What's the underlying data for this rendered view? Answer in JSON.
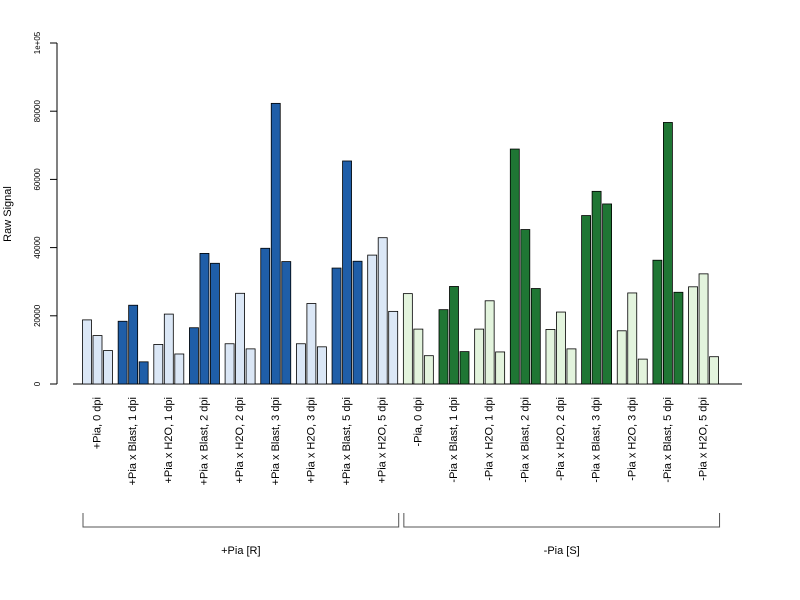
{
  "chart_data": {
    "type": "bar",
    "ylabel": "Raw Signal",
    "ylim": [
      0,
      100000
    ],
    "yticks": [
      0,
      20000,
      40000,
      60000,
      80000,
      100000
    ],
    "ytick_labels": [
      "0",
      "20000",
      "40000",
      "60000",
      "80000",
      "1e+05"
    ],
    "grid": false,
    "legend": "none",
    "bars_per_group": 3,
    "categories": [
      "+Pia, 0 dpi",
      "+Pia x Blast, 1 dpi",
      "+Pia x H2O, 1 dpi",
      "+Pia x Blast, 2 dpi",
      "+Pia x H2O, 2 dpi",
      "+Pia x Blast, 3 dpi",
      "+Pia x H2O, 3 dpi",
      "+Pia x Blast, 5 dpi",
      "+Pia x H2O, 5 dpi",
      "-Pia, 0 dpi",
      "-Pia x Blast, 1 dpi",
      "-Pia x H2O, 1 dpi",
      "-Pia x Blast, 2 dpi",
      "-Pia x H2O, 2 dpi",
      "-Pia x Blast, 3 dpi",
      "-Pia x H2O, 3 dpi",
      "-Pia x Blast, 5 dpi",
      "-Pia x H2O, 5 dpi"
    ],
    "values": [
      [
        18800,
        14200,
        9800
      ],
      [
        18400,
        23100,
        6500
      ],
      [
        11600,
        20500,
        8800
      ],
      [
        16500,
        38300,
        35400
      ],
      [
        11800,
        26600,
        10300
      ],
      [
        39800,
        82300,
        35900
      ],
      [
        11800,
        23600,
        10900
      ],
      [
        34000,
        65400,
        36000
      ],
      [
        37800,
        42900,
        21300
      ],
      [
        26500,
        16100,
        8300
      ],
      [
        21800,
        28600,
        9500
      ],
      [
        16100,
        24400,
        9400
      ],
      [
        68900,
        45300,
        28000
      ],
      [
        16000,
        21100,
        10300
      ],
      [
        49400,
        56500,
        52800
      ],
      [
        15600,
        26700,
        7300
      ],
      [
        36300,
        76700,
        26900
      ],
      [
        28500,
        32300,
        8000
      ]
    ],
    "fill_colors": [
      "#dbe7f6",
      "#1f5ea8",
      "#dbe7f6",
      "#1f5ea8",
      "#dbe7f6",
      "#1f5ea8",
      "#dbe7f6",
      "#1f5ea8",
      "#dbe7f6",
      "#e3f4dd",
      "#1f7634",
      "#e3f4dd",
      "#1f7634",
      "#e3f4dd",
      "#1f7634",
      "#e3f4dd",
      "#1f7634",
      "#e3f4dd"
    ],
    "brackets": [
      {
        "label": "+Pia [R]",
        "from": 0,
        "to": 8
      },
      {
        "label": "-Pia [S]",
        "from": 9,
        "to": 17
      }
    ]
  }
}
